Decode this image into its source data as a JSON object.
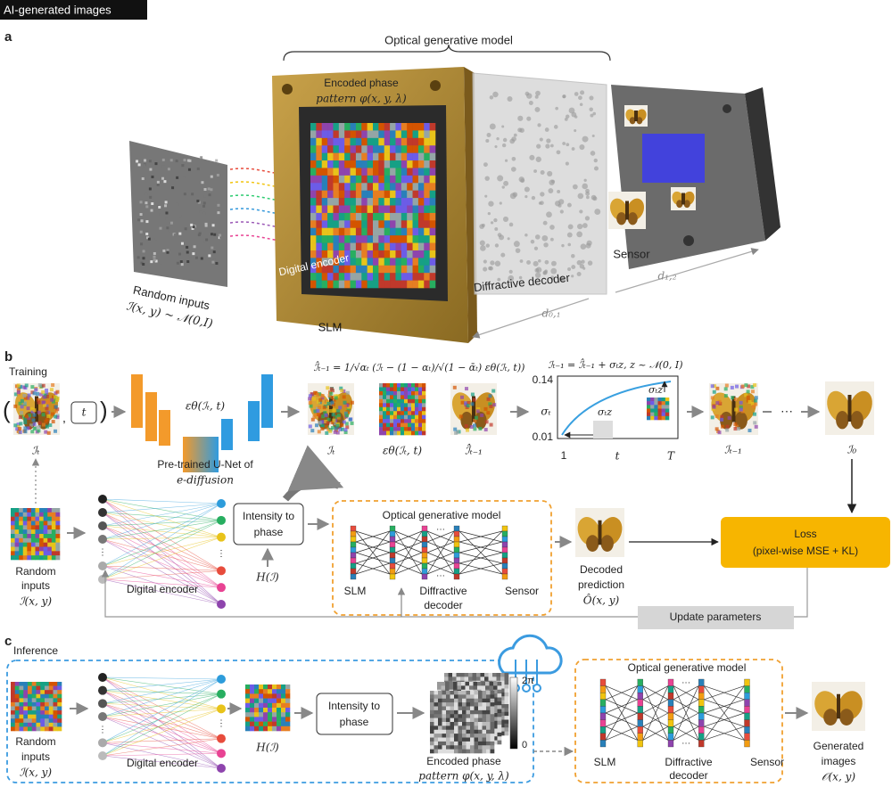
{
  "header": {
    "tag": "AI-generated images"
  },
  "panel_a": {
    "label": "a",
    "brace_label": "Optical generative model",
    "phase_pattern": [
      "Encoded phase",
      "pattern φ(x, y, λ)"
    ],
    "encoder": "Digital encoder",
    "inputs": [
      "Random inputs",
      "ℐ(x, y) ~ 𝒩(0,I)"
    ],
    "slm": "SLM",
    "decoder": "Diffractive decoder",
    "sensor": "Sensor",
    "d12": "d₁,₂",
    "d01": "d₀,₁"
  },
  "panel_b": {
    "label": "b",
    "mode": "Training",
    "t_box": "t",
    "It": "ℐₜ",
    "unet_eq": "εθ(ℐₜ, t)",
    "unet": [
      "Pre-trained U-Net of",
      "e-diffusion"
    ],
    "eq_hat": "ℐ̂ₜ₋₁ = 1/√αₜ (ℐₜ − (1 − αₜ)/√(1 − ᾱₜ) εθ(ℐₜ, t))",
    "img_labels": [
      "ℐₜ",
      "εθ(ℐₜ, t)",
      "ℐ̂ₜ₋₁"
    ],
    "eq_next": "ℐₜ₋₁ = ℐ̂ₜ₋₁ + σₜz,  z ~ 𝒩(0, I)",
    "sigma": {
      "y_top": "0.14",
      "y_bottom": "0.01",
      "y_label": "σₜ",
      "x_labels": [
        "1",
        "t",
        "T"
      ],
      "annot": [
        "σₜz",
        "σₜz"
      ]
    },
    "next_label": "ℐₜ₋₁",
    "ellipsis": "···",
    "final_label": "ℐ₀",
    "inputs": [
      "Random",
      "inputs",
      "ℐ(x, y)"
    ],
    "encoder": "Digital encoder",
    "int_phase": [
      "Intensity to",
      "phase"
    ],
    "H": "H(ℐ)",
    "ogm": {
      "title": "Optical generative model",
      "slm": "SLM",
      "decoder": [
        "Diffractive",
        "decoder"
      ],
      "sensor": "Sensor"
    },
    "prediction": [
      "Decoded",
      "prediction",
      "Ô(x, y)"
    ],
    "loss": [
      "Loss",
      "(pixel-wise MSE + KL)"
    ],
    "update": "Update parameters"
  },
  "panel_c": {
    "label": "c",
    "mode": "Inference",
    "inputs": [
      "Random",
      "inputs",
      "ℐ(x, y)"
    ],
    "encoder": "Digital encoder",
    "H": "H(ℐ)",
    "int_phase": [
      "Intensity to",
      "phase"
    ],
    "cbar": [
      "2π",
      "0"
    ],
    "phase_pattern": [
      "Encoded phase",
      "pattern φ(x, y, λ)"
    ],
    "ogm": {
      "title": "Optical generative model",
      "slm": "SLM",
      "decoder": [
        "Diffractive",
        "decoder"
      ],
      "sensor": "Sensor"
    },
    "output": [
      "Generated",
      "images",
      "𝒪(x, y)"
    ]
  }
}
